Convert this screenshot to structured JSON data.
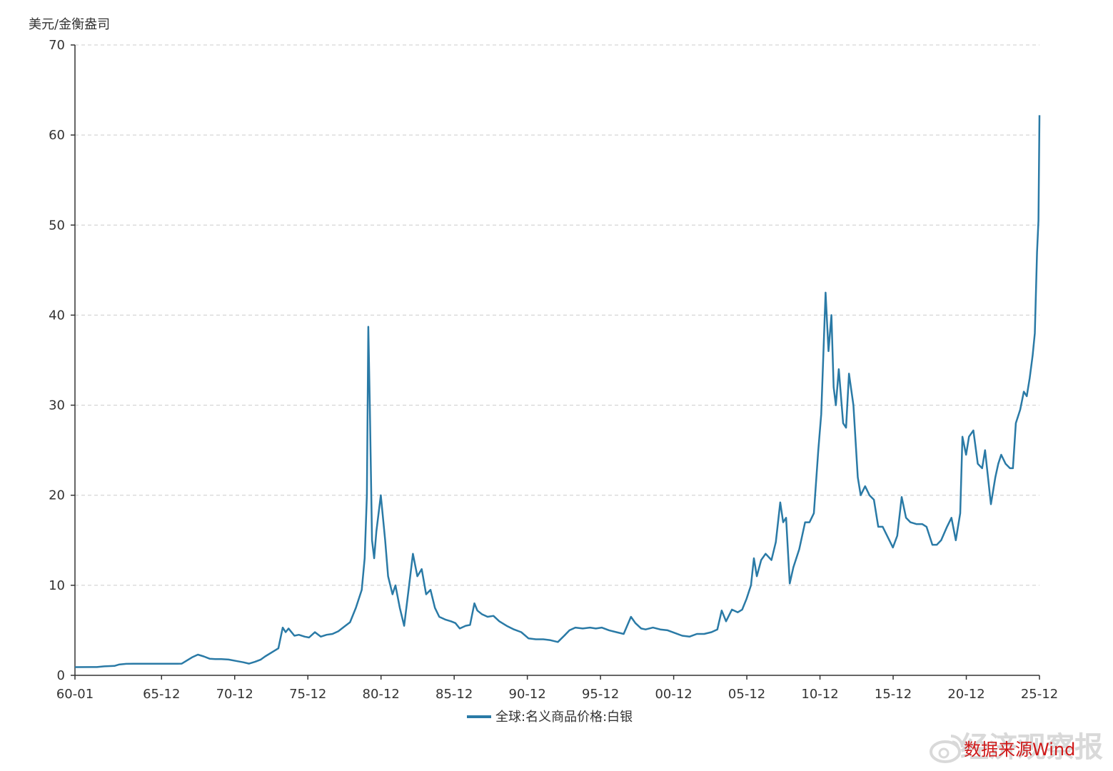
{
  "chart_data": {
    "type": "line",
    "ylabel": "美元/金衡盎司",
    "ylim": [
      0,
      70
    ],
    "yticks": [
      0,
      10,
      20,
      30,
      40,
      50,
      60,
      70
    ],
    "xlim": [
      1960.0,
      2025.917
    ],
    "xtick_labels": [
      "60-01",
      "65-12",
      "70-12",
      "75-12",
      "80-12",
      "85-12",
      "90-12",
      "95-12",
      "00-12",
      "05-12",
      "10-12",
      "15-12",
      "20-12",
      "25-12"
    ],
    "xtick_values": [
      1960.0,
      1965.917,
      1970.917,
      1975.917,
      1980.917,
      1985.917,
      1990.917,
      1995.917,
      2000.917,
      2005.917,
      2010.917,
      2015.917,
      2020.917,
      2025.917
    ],
    "grid": "horizontal-dashed",
    "legend_position": "bottom-center",
    "series": [
      {
        "name": "全球:名义商品价格:白银",
        "color": "#2a7aa6",
        "points": [
          [
            1960.0,
            0.91
          ],
          [
            1961.5,
            0.92
          ],
          [
            1962.0,
            1.0
          ],
          [
            1962.7,
            1.05
          ],
          [
            1963.0,
            1.2
          ],
          [
            1963.5,
            1.28
          ],
          [
            1964.0,
            1.29
          ],
          [
            1965.0,
            1.29
          ],
          [
            1966.0,
            1.29
          ],
          [
            1967.0,
            1.29
          ],
          [
            1967.3,
            1.3
          ],
          [
            1967.6,
            1.6
          ],
          [
            1968.0,
            2.0
          ],
          [
            1968.4,
            2.3
          ],
          [
            1968.8,
            2.1
          ],
          [
            1969.2,
            1.85
          ],
          [
            1969.6,
            1.8
          ],
          [
            1970.0,
            1.8
          ],
          [
            1970.5,
            1.75
          ],
          [
            1971.0,
            1.6
          ],
          [
            1971.5,
            1.45
          ],
          [
            1971.9,
            1.3
          ],
          [
            1972.3,
            1.5
          ],
          [
            1972.7,
            1.75
          ],
          [
            1973.0,
            2.1
          ],
          [
            1973.5,
            2.6
          ],
          [
            1973.9,
            3.0
          ],
          [
            1974.2,
            5.3
          ],
          [
            1974.4,
            4.8
          ],
          [
            1974.6,
            5.2
          ],
          [
            1975.0,
            4.4
          ],
          [
            1975.3,
            4.5
          ],
          [
            1975.7,
            4.3
          ],
          [
            1976.0,
            4.2
          ],
          [
            1976.4,
            4.8
          ],
          [
            1976.8,
            4.3
          ],
          [
            1977.2,
            4.5
          ],
          [
            1977.6,
            4.6
          ],
          [
            1978.0,
            4.9
          ],
          [
            1978.4,
            5.4
          ],
          [
            1978.8,
            5.9
          ],
          [
            1979.2,
            7.5
          ],
          [
            1979.6,
            9.5
          ],
          [
            1979.8,
            13.0
          ],
          [
            1979.95,
            20.0
          ],
          [
            1980.05,
            38.7
          ],
          [
            1980.15,
            30.0
          ],
          [
            1980.3,
            15.0
          ],
          [
            1980.45,
            13.0
          ],
          [
            1980.6,
            16.0
          ],
          [
            1980.9,
            20.0
          ],
          [
            1981.2,
            15.0
          ],
          [
            1981.4,
            11.0
          ],
          [
            1981.7,
            9.0
          ],
          [
            1981.9,
            10.0
          ],
          [
            1982.2,
            7.5
          ],
          [
            1982.5,
            5.5
          ],
          [
            1982.8,
            9.5
          ],
          [
            1983.1,
            13.5
          ],
          [
            1983.4,
            11.0
          ],
          [
            1983.7,
            11.8
          ],
          [
            1984.0,
            9.0
          ],
          [
            1984.3,
            9.5
          ],
          [
            1984.6,
            7.5
          ],
          [
            1984.9,
            6.5
          ],
          [
            1985.3,
            6.2
          ],
          [
            1985.7,
            6.0
          ],
          [
            1986.0,
            5.8
          ],
          [
            1986.3,
            5.2
          ],
          [
            1986.7,
            5.5
          ],
          [
            1987.0,
            5.6
          ],
          [
            1987.3,
            8.0
          ],
          [
            1987.5,
            7.2
          ],
          [
            1987.8,
            6.8
          ],
          [
            1988.2,
            6.5
          ],
          [
            1988.6,
            6.6
          ],
          [
            1989.0,
            6.0
          ],
          [
            1989.5,
            5.5
          ],
          [
            1990.0,
            5.1
          ],
          [
            1990.5,
            4.8
          ],
          [
            1991.0,
            4.1
          ],
          [
            1991.5,
            4.0
          ],
          [
            1992.0,
            4.0
          ],
          [
            1992.5,
            3.9
          ],
          [
            1993.0,
            3.7
          ],
          [
            1993.5,
            4.5
          ],
          [
            1993.8,
            5.0
          ],
          [
            1994.2,
            5.3
          ],
          [
            1994.7,
            5.2
          ],
          [
            1995.2,
            5.3
          ],
          [
            1995.6,
            5.2
          ],
          [
            1996.0,
            5.3
          ],
          [
            1996.5,
            5.0
          ],
          [
            1997.0,
            4.8
          ],
          [
            1997.5,
            4.6
          ],
          [
            1998.0,
            6.5
          ],
          [
            1998.3,
            5.8
          ],
          [
            1998.7,
            5.2
          ],
          [
            1999.0,
            5.1
          ],
          [
            1999.5,
            5.3
          ],
          [
            2000.0,
            5.1
          ],
          [
            2000.5,
            5.0
          ],
          [
            2001.0,
            4.7
          ],
          [
            2001.5,
            4.4
          ],
          [
            2002.0,
            4.3
          ],
          [
            2002.5,
            4.6
          ],
          [
            2003.0,
            4.6
          ],
          [
            2003.5,
            4.8
          ],
          [
            2003.9,
            5.1
          ],
          [
            2004.2,
            7.2
          ],
          [
            2004.5,
            6.0
          ],
          [
            2004.9,
            7.3
          ],
          [
            2005.3,
            7.0
          ],
          [
            2005.6,
            7.3
          ],
          [
            2005.9,
            8.5
          ],
          [
            2006.2,
            10.0
          ],
          [
            2006.4,
            13.0
          ],
          [
            2006.6,
            11.0
          ],
          [
            2006.9,
            12.8
          ],
          [
            2007.2,
            13.5
          ],
          [
            2007.6,
            12.8
          ],
          [
            2007.9,
            14.8
          ],
          [
            2008.2,
            19.2
          ],
          [
            2008.4,
            17.0
          ],
          [
            2008.6,
            17.5
          ],
          [
            2008.85,
            10.2
          ],
          [
            2009.1,
            12.0
          ],
          [
            2009.5,
            14.0
          ],
          [
            2009.9,
            17.0
          ],
          [
            2010.2,
            17.0
          ],
          [
            2010.5,
            18.0
          ],
          [
            2010.8,
            25.0
          ],
          [
            2011.0,
            29.0
          ],
          [
            2011.3,
            42.5
          ],
          [
            2011.5,
            36.0
          ],
          [
            2011.7,
            40.0
          ],
          [
            2011.85,
            32.0
          ],
          [
            2012.0,
            30.0
          ],
          [
            2012.2,
            34.0
          ],
          [
            2012.5,
            28.0
          ],
          [
            2012.7,
            27.5
          ],
          [
            2012.9,
            33.5
          ],
          [
            2013.2,
            30.0
          ],
          [
            2013.5,
            22.0
          ],
          [
            2013.7,
            20.0
          ],
          [
            2014.0,
            21.0
          ],
          [
            2014.3,
            20.0
          ],
          [
            2014.6,
            19.5
          ],
          [
            2014.9,
            16.5
          ],
          [
            2015.2,
            16.5
          ],
          [
            2015.6,
            15.2
          ],
          [
            2015.9,
            14.2
          ],
          [
            2016.2,
            15.5
          ],
          [
            2016.5,
            19.8
          ],
          [
            2016.8,
            17.5
          ],
          [
            2017.1,
            17.0
          ],
          [
            2017.5,
            16.8
          ],
          [
            2017.9,
            16.8
          ],
          [
            2018.2,
            16.5
          ],
          [
            2018.6,
            14.5
          ],
          [
            2018.9,
            14.5
          ],
          [
            2019.2,
            15.0
          ],
          [
            2019.6,
            16.5
          ],
          [
            2019.9,
            17.5
          ],
          [
            2020.2,
            15.0
          ],
          [
            2020.5,
            18.0
          ],
          [
            2020.65,
            26.5
          ],
          [
            2020.9,
            24.5
          ],
          [
            2021.1,
            26.5
          ],
          [
            2021.4,
            27.2
          ],
          [
            2021.7,
            23.5
          ],
          [
            2022.0,
            23.0
          ],
          [
            2022.2,
            25.0
          ],
          [
            2022.4,
            22.0
          ],
          [
            2022.6,
            19.0
          ],
          [
            2022.9,
            22.0
          ],
          [
            2023.1,
            23.5
          ],
          [
            2023.3,
            24.5
          ],
          [
            2023.6,
            23.5
          ],
          [
            2023.9,
            23.0
          ],
          [
            2024.1,
            23.0
          ],
          [
            2024.3,
            28.0
          ],
          [
            2024.6,
            29.5
          ],
          [
            2024.85,
            31.5
          ],
          [
            2025.05,
            31.0
          ],
          [
            2025.25,
            33.0
          ],
          [
            2025.45,
            35.5
          ],
          [
            2025.6,
            38.0
          ],
          [
            2025.75,
            47.0
          ],
          [
            2025.85,
            50.5
          ],
          [
            2025.917,
            62.2
          ]
        ]
      }
    ]
  },
  "watermark": {
    "text": "经济观察报",
    "source": "数据来源Wind"
  }
}
